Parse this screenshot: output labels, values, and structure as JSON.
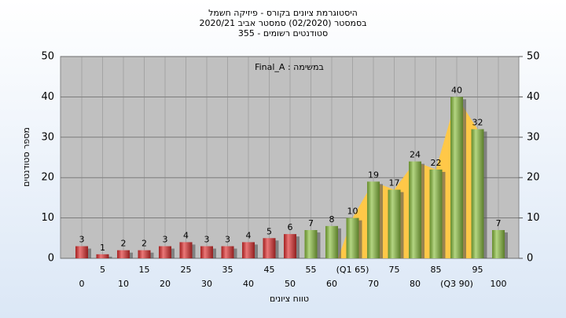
{
  "chart_data": {
    "type": "bar",
    "title": [
      "היסטוגרמת ציונים בקורס - פיזיקה חשמל",
      "בסמסטר  (02/2020)  סמסטר אביב 2020/21",
      "סטודנטים רשומים - 355"
    ],
    "annotation": "במשימה : Final_A",
    "y_label": "מספר סטודנטים",
    "x_label": "טווח ציונים",
    "categories": [
      "0",
      "5",
      "10",
      "15",
      "20",
      "25",
      "30",
      "35",
      "40",
      "45",
      "50",
      "55",
      "60",
      "(Q1 65)",
      "70",
      "75",
      "80",
      "85",
      "(Q3 90)",
      "95",
      "100"
    ],
    "values": [
      3,
      1,
      2,
      2,
      3,
      4,
      3,
      3,
      4,
      5,
      6,
      7,
      8,
      10,
      19,
      17,
      24,
      22,
      40,
      32,
      7
    ],
    "colors": [
      "#e03030",
      "#e03030",
      "#e03030",
      "#e03030",
      "#e03030",
      "#e03030",
      "#e03030",
      "#e03030",
      "#e03030",
      "#e03030",
      "#e03030",
      "#8cc040",
      "#8cc040",
      "#8cc040",
      "#8cc040",
      "#8cc040",
      "#8cc040",
      "#8cc040",
      "#8cc040",
      "#8cc040",
      "#8cc040"
    ],
    "area_color": "#ffc848",
    "ylim": [
      0,
      50
    ],
    "yticks": [
      0,
      10,
      20,
      30,
      40,
      50
    ],
    "y2lim": [
      0,
      50
    ],
    "y2ticks": [
      0,
      10,
      20,
      30,
      40,
      50
    ],
    "grid": true
  }
}
